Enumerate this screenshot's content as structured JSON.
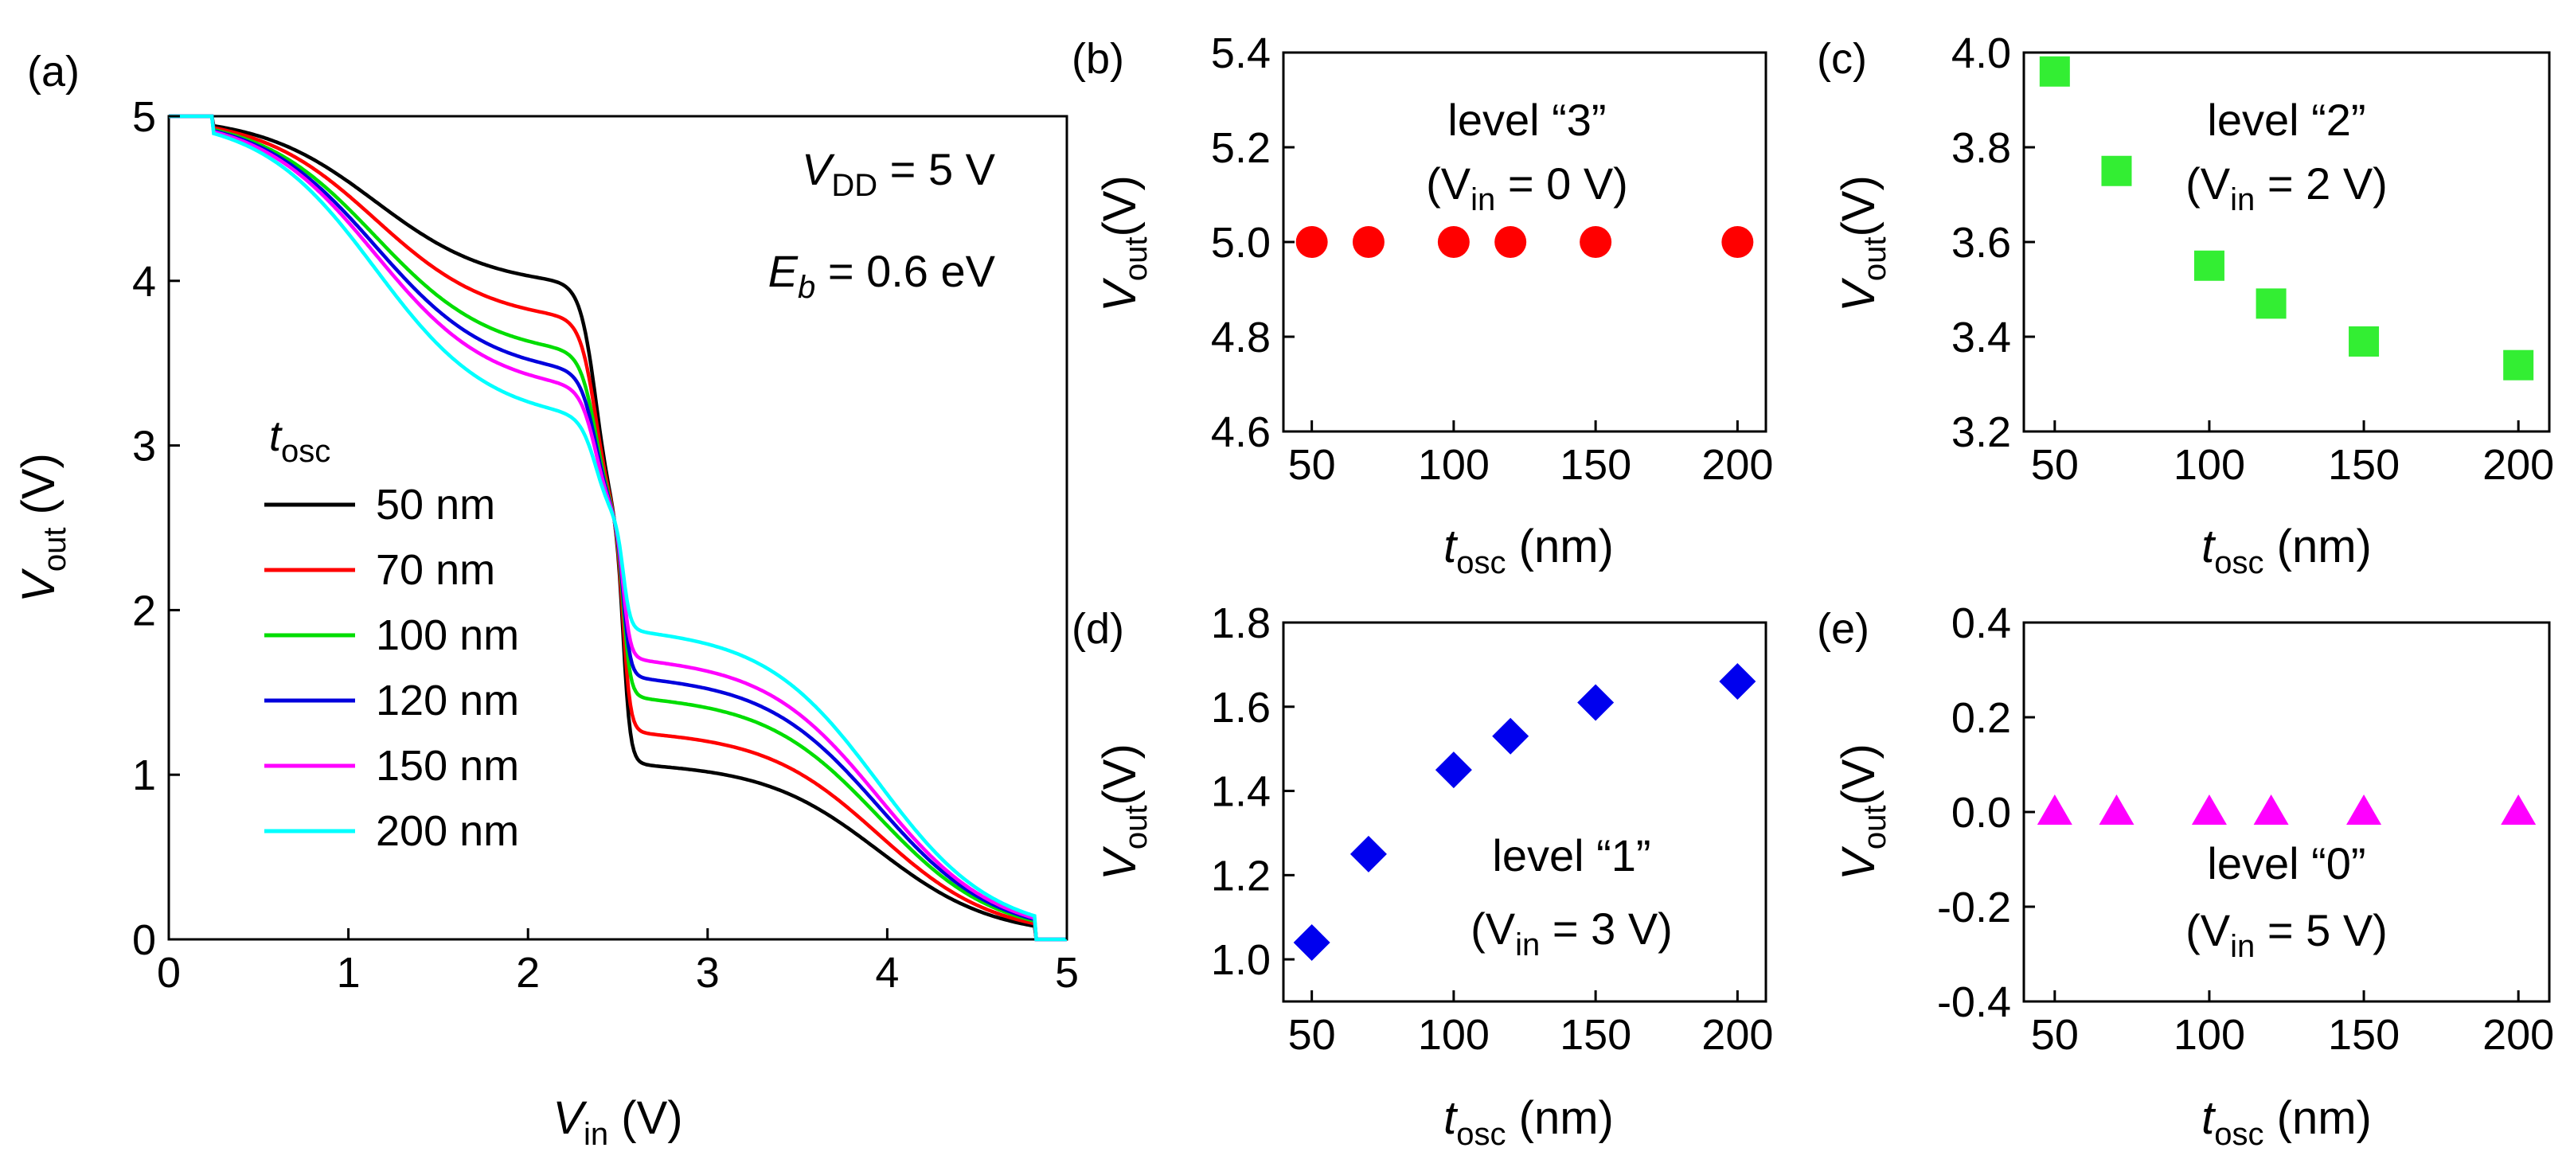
{
  "chart_data": [
    {
      "id": "a",
      "panel_label": "(a)",
      "type": "line",
      "xlabel": {
        "main": "V",
        "sub": "in",
        "unit": " (V)"
      },
      "ylabel": {
        "main": "V",
        "sub": "out",
        "unit": " (V)"
      },
      "xlim": [
        0,
        5
      ],
      "ylim": [
        0,
        5
      ],
      "xticks": [
        "0",
        "1",
        "2",
        "3",
        "4",
        "5"
      ],
      "yticks": [
        "0",
        "1",
        "2",
        "3",
        "4",
        "5"
      ],
      "annotations": [
        {
          "main": "V",
          "sub": "DD",
          "rest": " = 5 V"
        },
        {
          "main": "E",
          "sub": "b",
          "rest": " = 0.6 eV"
        }
      ],
      "legend_title": {
        "main": "t",
        "sub": "osc"
      },
      "series": [
        {
          "name": "50 nm",
          "color": "#000000",
          "flat_high": 3.95,
          "flat_low": 1.05
        },
        {
          "name": "70 nm",
          "color": "#ff0000",
          "flat_high": 3.73,
          "flat_low": 1.24
        },
        {
          "name": "100 nm",
          "color": "#00dd00",
          "flat_high": 3.52,
          "flat_low": 1.45
        },
        {
          "name": "120 nm",
          "color": "#0000dd",
          "flat_high": 3.4,
          "flat_low": 1.57
        },
        {
          "name": "150 nm",
          "color": "#ff00ff",
          "flat_high": 3.3,
          "flat_low": 1.68
        },
        {
          "name": "200 nm",
          "color": "#00ffff",
          "flat_high": 3.12,
          "flat_low": 1.85
        }
      ]
    },
    {
      "id": "b",
      "panel_label": "(b)",
      "type": "scatter",
      "marker": "circle",
      "color": "#ff0000",
      "xlabel": {
        "main": "t",
        "sub": "osc",
        "unit": " (nm)"
      },
      "ylabel": {
        "main": "V",
        "sub": "out",
        "unit": "(V)"
      },
      "xlim": [
        40,
        210
      ],
      "ylim": [
        4.6,
        5.4
      ],
      "xticks": [
        "50",
        "100",
        "150",
        "200"
      ],
      "yticks": [
        "4.6",
        "4.8",
        "5.0",
        "5.2",
        "5.4"
      ],
      "x": [
        50,
        70,
        100,
        120,
        150,
        200
      ],
      "y": [
        5.0,
        5.0,
        5.0,
        5.0,
        5.0,
        5.0
      ],
      "level": "level “3”",
      "condition": {
        "main": "(V",
        "sub": "in",
        "rest": " = 0 V)"
      }
    },
    {
      "id": "c",
      "panel_label": "(c)",
      "type": "scatter",
      "marker": "square",
      "color": "#33ee33",
      "xlabel": {
        "main": "t",
        "sub": "osc",
        "unit": " (nm)"
      },
      "ylabel": {
        "main": "V",
        "sub": "out",
        "unit": "(V)"
      },
      "xlim": [
        40,
        210
      ],
      "ylim": [
        3.2,
        4.0
      ],
      "xticks": [
        "50",
        "100",
        "150",
        "200"
      ],
      "yticks": [
        "3.2",
        "3.4",
        "3.6",
        "3.8",
        "4.0"
      ],
      "x": [
        50,
        70,
        100,
        120,
        150,
        200
      ],
      "y": [
        3.96,
        3.75,
        3.55,
        3.47,
        3.39,
        3.34
      ],
      "level": "level “2”",
      "condition": {
        "main": "(V",
        "sub": "in",
        "rest": " = 2 V)"
      }
    },
    {
      "id": "d",
      "panel_label": "(d)",
      "type": "scatter",
      "marker": "diamond",
      "color": "#0000ee",
      "xlabel": {
        "main": "t",
        "sub": "osc",
        "unit": " (nm)"
      },
      "ylabel": {
        "main": "V",
        "sub": "out",
        "unit": "(V)"
      },
      "xlim": [
        40,
        210
      ],
      "ylim": [
        0.9,
        1.8
      ],
      "xticks": [
        "50",
        "100",
        "150",
        "200"
      ],
      "yticks": [
        "1.0",
        "1.2",
        "1.4",
        "1.6",
        "1.8"
      ],
      "x": [
        50,
        70,
        100,
        120,
        150,
        200
      ],
      "y": [
        1.04,
        1.25,
        1.45,
        1.53,
        1.61,
        1.66
      ],
      "level": "level “1”",
      "condition": {
        "main": "(V",
        "sub": "in",
        "rest": " = 3 V)"
      }
    },
    {
      "id": "e",
      "panel_label": "(e)",
      "type": "scatter",
      "marker": "triangle",
      "color": "#ff00ff",
      "xlabel": {
        "main": "t",
        "sub": "osc",
        "unit": " (nm)"
      },
      "ylabel": {
        "main": "V",
        "sub": "out",
        "unit": "(V)"
      },
      "xlim": [
        40,
        210
      ],
      "ylim": [
        -0.4,
        0.4
      ],
      "xticks": [
        "50",
        "100",
        "150",
        "200"
      ],
      "yticks": [
        "-0.4",
        "-0.2",
        "0.0",
        "0.2",
        "0.4"
      ],
      "x": [
        50,
        70,
        100,
        120,
        150,
        200
      ],
      "y": [
        0.0,
        0.0,
        0.0,
        0.0,
        0.0,
        0.0
      ],
      "level": "level “0”",
      "condition": {
        "main": "(V",
        "sub": "in",
        "rest": " = 5 V)"
      }
    }
  ]
}
